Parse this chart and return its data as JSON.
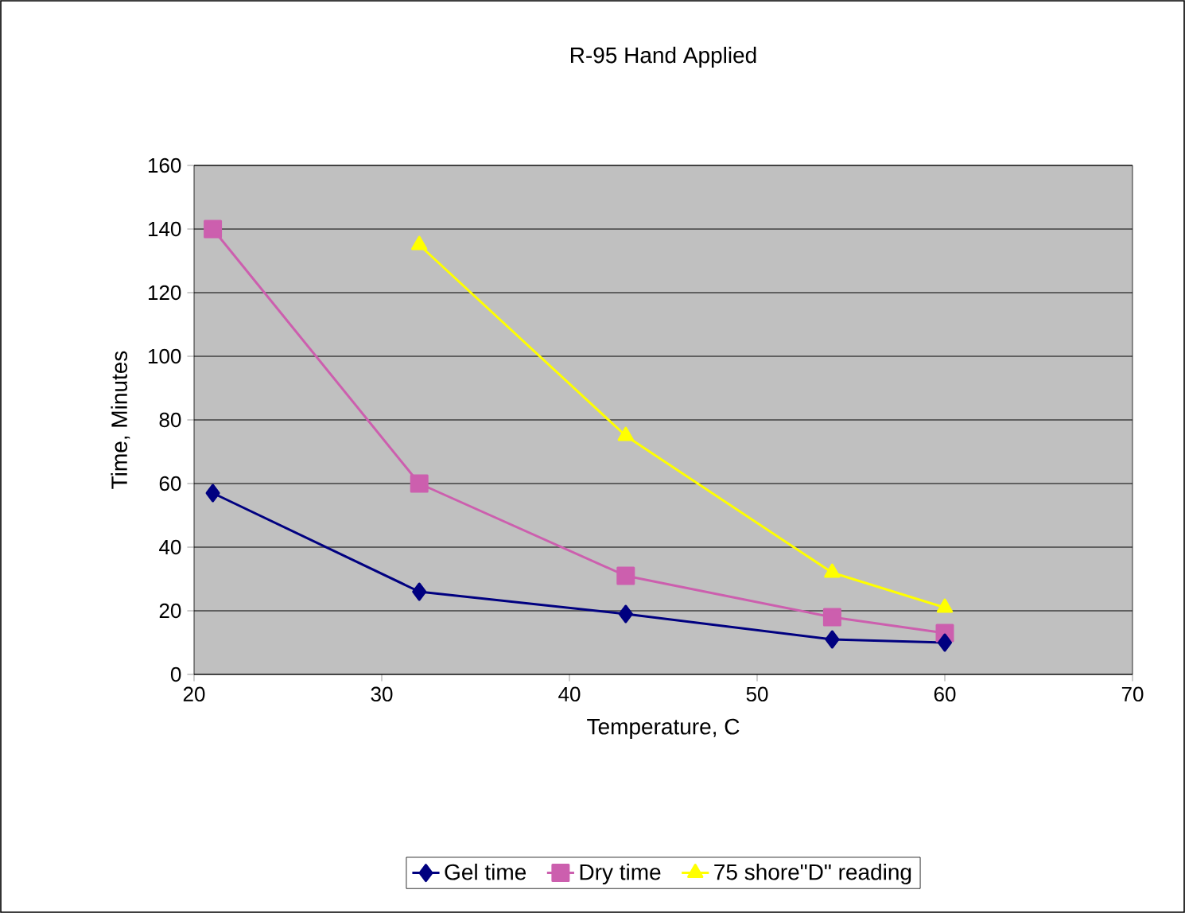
{
  "chart_data": {
    "type": "line",
    "title": "R-95 Hand Applied",
    "xlabel": "Temperature,  C",
    "ylabel": "Time,  Minutes",
    "x": [
      21,
      32,
      43,
      54,
      60
    ],
    "series": [
      {
        "name": "Gel time",
        "color": "#000080",
        "marker": "diamond",
        "values": [
          57,
          26,
          19,
          11,
          10
        ]
      },
      {
        "name": "Dry time",
        "color": "#cc5fae",
        "marker": "square",
        "values": [
          140,
          60,
          31,
          18,
          13
        ]
      },
      {
        "name": "75 shore\"D\" reading",
        "color": "#ffff00",
        "marker": "triangle",
        "values": [
          null,
          135,
          75,
          32,
          21
        ]
      }
    ],
    "xlim": [
      20,
      70
    ],
    "ylim": [
      0,
      160
    ],
    "xticks": [
      20,
      30,
      40,
      50,
      60,
      70
    ],
    "yticks": [
      0,
      20,
      40,
      60,
      80,
      100,
      120,
      140,
      160
    ],
    "grid": "y",
    "legend": "bottom",
    "line_style": "solid"
  }
}
